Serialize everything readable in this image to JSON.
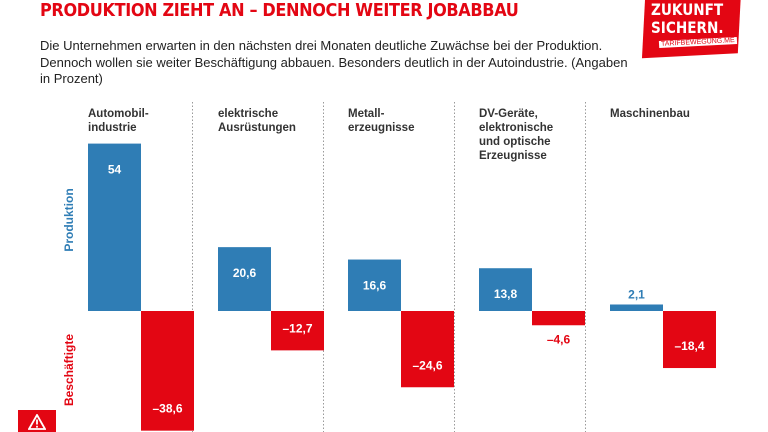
{
  "header": {
    "title": "PRODUKTION ZIEHT AN – DENNOCH WEITER JOBABBAU",
    "intro": "Die Unternehmen erwarten in den nächsten drei Monaten deutliche Zuwächse bei der Produktion. Dennoch wollen sie weiter Beschäftigung abbauen. Besonders deutlich in der Autoindustrie. (Angaben in Prozent)"
  },
  "logo": {
    "line1": "ZUKUNFT",
    "line2": "SICHERN.",
    "line3": "TARIFBEWEGUNG.ME"
  },
  "colors": {
    "accent": "#e30613",
    "blue": "#2f7db5",
    "red": "#e30613",
    "divider": "#9a9a9a"
  },
  "icons": {
    "warning": "warning-triangle-icon"
  },
  "chart_data": {
    "type": "bar",
    "categories": [
      [
        "Automobil-",
        "industrie"
      ],
      [
        "elektrische",
        "Ausrüstungen"
      ],
      [
        "Metall-",
        "erzeugnisse"
      ],
      [
        "DV-Geräte,",
        "elektronische",
        "und optische",
        "Erzeugnisse"
      ],
      [
        "Maschinenbau"
      ]
    ],
    "series": [
      {
        "name": "Produktion",
        "values": [
          54,
          20.6,
          16.6,
          13.8,
          2.1
        ],
        "labels": [
          "54",
          "20,6",
          "16,6",
          "13,8",
          "2,1"
        ],
        "color": "#2f7db5"
      },
      {
        "name": "Beschäftigte",
        "values": [
          -38.6,
          -12.7,
          -24.6,
          -4.6,
          -18.4
        ],
        "labels": [
          "–38,6",
          "–12,7",
          "–24,6",
          "–4,6",
          "–18,4"
        ],
        "color": "#e30613"
      }
    ],
    "grid": false,
    "legend": "none"
  }
}
